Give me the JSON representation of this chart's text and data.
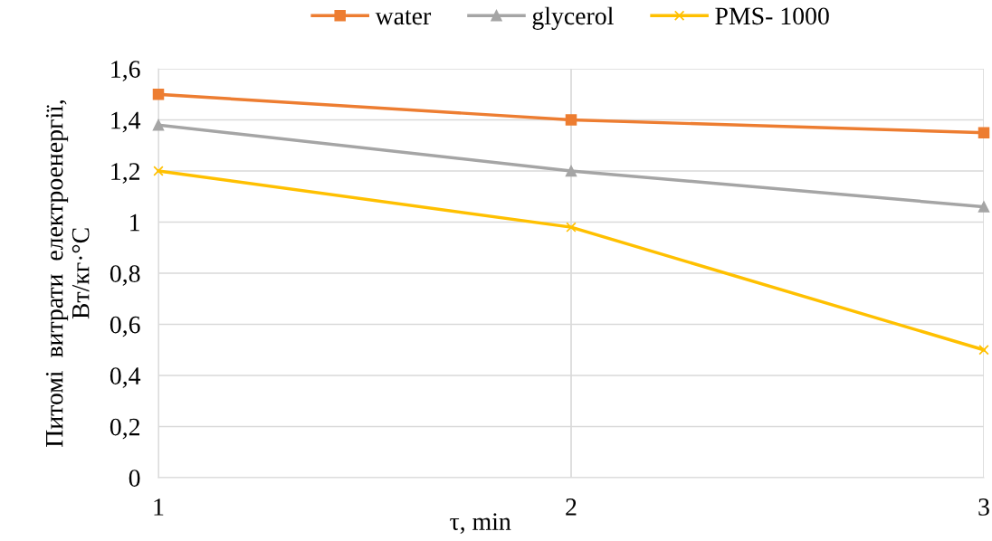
{
  "chart_data": {
    "type": "line",
    "xlabel": "τ, min",
    "ylabel": "Питомі  витрати  електроенергії,\nВт/кг·°С",
    "x": [
      1,
      2,
      3
    ],
    "xlim": [
      1,
      3
    ],
    "xticks": [
      1,
      2,
      3
    ],
    "ylim": [
      0,
      1.6
    ],
    "yticks": [
      0,
      {
        "value": 0.2,
        "label": "0,2"
      },
      {
        "value": 0.4,
        "label": "0,4"
      },
      {
        "value": 0.6,
        "label": "0,6"
      },
      {
        "value": 0.8,
        "label": "0,8"
      },
      1,
      {
        "value": 1.2,
        "label": "1,2"
      },
      {
        "value": 1.4,
        "label": "1,4"
      },
      {
        "value": 1.6,
        "label": "1,6"
      }
    ],
    "grid": true,
    "legend": "top",
    "line_style": "solid",
    "series": [
      {
        "name": "water",
        "color": "#ed7d31",
        "marker": "square",
        "values": [
          1.5,
          1.4,
          1.35
        ]
      },
      {
        "name": "glycerol",
        "color": "#a5a5a5",
        "marker": "triangle",
        "values": [
          1.38,
          1.2,
          1.06
        ]
      },
      {
        "name": "PMS- 1000",
        "color": "#ffc000",
        "marker": "cross",
        "values": [
          1.2,
          0.98,
          0.5
        ]
      }
    ]
  }
}
